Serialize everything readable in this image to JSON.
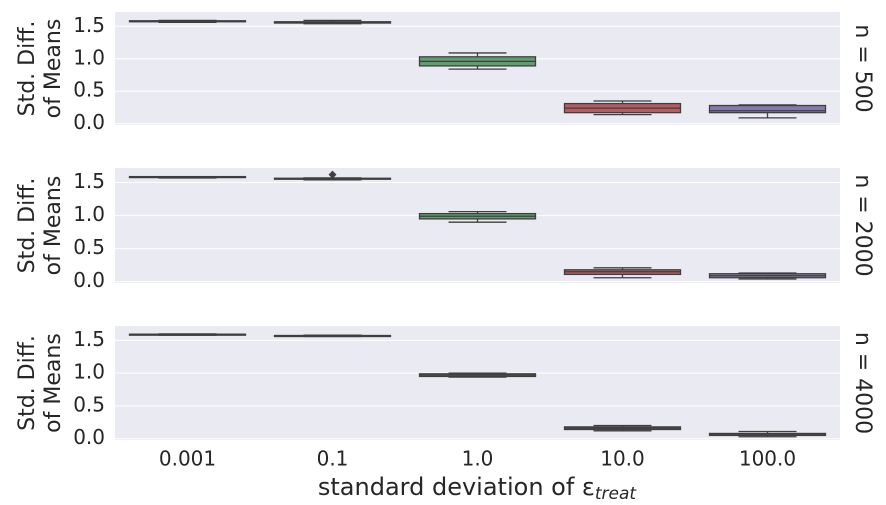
{
  "chart_data": [
    {
      "type": "box",
      "facet": "n = 500",
      "ylabel": [
        "Std. Diff.",
        "of Means"
      ],
      "colors": [
        "#5975a4",
        "#cc8963",
        "#5f9e6e",
        "#b55d60",
        "#857aab"
      ],
      "boxes": {
        "min": [
          1.56,
          1.54,
          0.84,
          0.14,
          0.09
        ],
        "q1": [
          1.57,
          1.55,
          0.89,
          0.17,
          0.17
        ],
        "median": [
          1.58,
          1.56,
          0.96,
          0.24,
          0.2
        ],
        "q3": [
          1.585,
          1.57,
          1.03,
          0.31,
          0.28
        ],
        "max": [
          1.59,
          1.59,
          1.09,
          0.35,
          0.29
        ]
      },
      "outliers": [
        [],
        [],
        [],
        [],
        []
      ],
      "ylim": [
        -0.02,
        1.72
      ],
      "yticks": [
        {
          "value": 0,
          "label": "0.0"
        },
        0.5,
        {
          "value": 1,
          "label": "1.0"
        },
        1.5
      ],
      "grid": true
    },
    {
      "type": "box",
      "facet": "n = 2000",
      "ylabel": [
        "Std. Diff.",
        "of Means"
      ],
      "colors": [
        "#5975a4",
        "#cc8963",
        "#5f9e6e",
        "#b55d60",
        "#857aab"
      ],
      "boxes": {
        "min": [
          1.57,
          1.54,
          0.9,
          0.06,
          0.04
        ],
        "q1": [
          1.575,
          1.55,
          0.95,
          0.11,
          0.06
        ],
        "median": [
          1.58,
          1.555,
          0.99,
          0.15,
          0.09
        ],
        "q3": [
          1.59,
          1.565,
          1.03,
          0.18,
          0.12
        ],
        "max": [
          1.59,
          1.57,
          1.06,
          0.21,
          0.13
        ]
      },
      "outliers": [
        [],
        [
          1.62
        ],
        [],
        [],
        []
      ],
      "ylim": [
        -0.02,
        1.72
      ],
      "yticks": [
        {
          "value": 0,
          "label": "0.0"
        },
        0.5,
        {
          "value": 1,
          "label": "1.0"
        },
        1.5
      ],
      "grid": true
    },
    {
      "type": "box",
      "facet": "n = 4000",
      "ylabel": [
        "Std. Diff.",
        "of Means"
      ],
      "categories": [
        "0.001",
        "0.1",
        "1.0",
        "10.0",
        "100.0"
      ],
      "xlabel": "standard deviation of ε",
      "xlabel_subscript": "treat",
      "colors": [
        "#5975a4",
        "#cc8963",
        "#5f9e6e",
        "#b55d60",
        "#857aab"
      ],
      "boxes": {
        "min": [
          1.58,
          1.56,
          0.94,
          0.12,
          0.03
        ],
        "q1": [
          1.585,
          1.565,
          0.95,
          0.14,
          0.05
        ],
        "median": [
          1.59,
          1.57,
          0.97,
          0.16,
          0.06
        ],
        "q3": [
          1.595,
          1.575,
          0.99,
          0.18,
          0.08
        ],
        "max": [
          1.6,
          1.58,
          1.0,
          0.2,
          0.11
        ]
      },
      "outliers": [
        [],
        [],
        [],
        [],
        []
      ],
      "ylim": [
        -0.02,
        1.72
      ],
      "yticks": [
        {
          "value": 0,
          "label": "0.0"
        },
        0.5,
        {
          "value": 1,
          "label": "1.0"
        },
        1.5
      ],
      "grid": true
    }
  ]
}
